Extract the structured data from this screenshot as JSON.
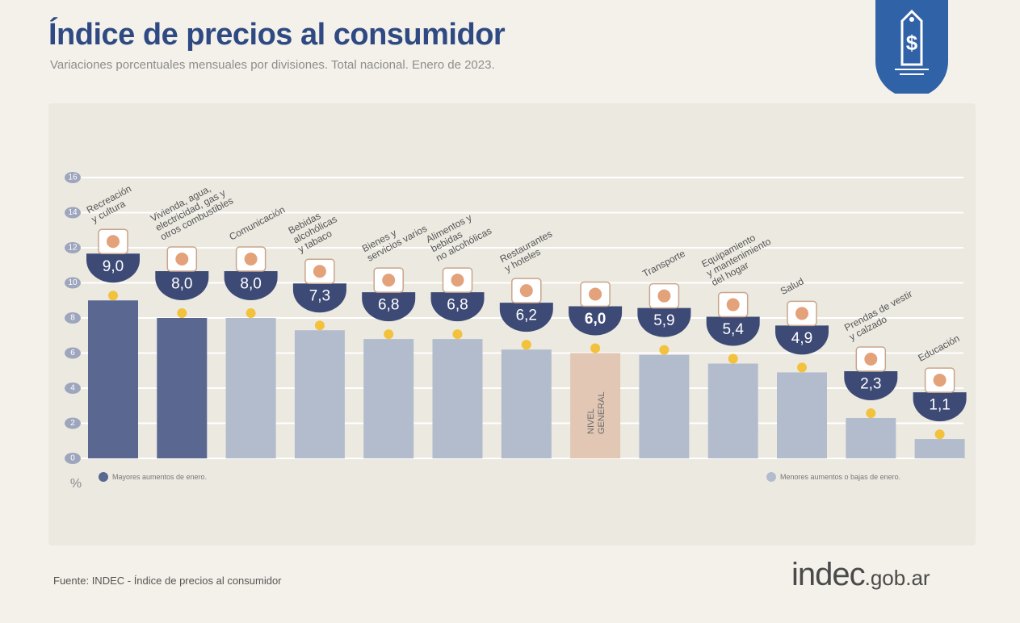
{
  "header": {
    "title": "Índice de precios al consumidor",
    "subtitle": "Variaciones porcentuales mensuales por divisiones. Total nacional. Enero de 2023."
  },
  "footer": {
    "source": "Fuente: INDEC - Índice de precios al consumidor",
    "brand_main": "indec",
    "brand_tld": ".gob.ar"
  },
  "colors": {
    "dark_bar": "#5a6891",
    "light_bar": "#b3bccd",
    "general_bar": "#e3c7b5",
    "badge": "#3d4a76",
    "badge_highlight": "#f2c23c",
    "dot": "#f2c23c",
    "title": "#2f4a82"
  },
  "chart_data": {
    "type": "bar",
    "title": "Índice de precios al consumidor",
    "ylabel": "%",
    "ylim": [
      0,
      16
    ],
    "yticks": [
      "0",
      "2",
      "4",
      "6",
      "8",
      "10",
      "12",
      "14",
      "16"
    ],
    "grid": true,
    "categories": [
      "Recreación y cultura",
      "Vivienda, agua, electricidad, gas y otros combustibles",
      "Comunicación",
      "Bebidas alcohólicas y tabaco",
      "Bienes y servicios varios",
      "Alimentos y bebidas no alcohólicas",
      "Restaurantes y hoteles",
      "NIVEL GENERAL",
      "Transporte",
      "Equipamiento y mantenimiento del hogar",
      "Salud",
      "Prendas de vestir y calzado",
      "Educación"
    ],
    "category_label_lines": [
      [
        "Recreación",
        "y cultura"
      ],
      [
        "Vivienda, agua,",
        "electricidad, gas y",
        "otros combustibles"
      ],
      [
        "Comunicación"
      ],
      [
        "Bebidas",
        "alcohólicas",
        "y tabaco"
      ],
      [
        "Bienes y",
        "servicios varios"
      ],
      [
        "Alimentos y",
        "bebidas",
        "no alcohólicas"
      ],
      [
        "Restaurantes",
        "y hoteles"
      ],
      [
        "NIVEL",
        "GENERAL"
      ],
      [
        "Transporte"
      ],
      [
        "Equipamiento",
        "y mantenimiento",
        "del hogar"
      ],
      [
        "Salud"
      ],
      [
        "Prendas de vestir",
        "y calzado"
      ],
      [
        "Educación"
      ]
    ],
    "values": [
      9.0,
      8.0,
      8.0,
      7.3,
      6.8,
      6.8,
      6.2,
      6.0,
      5.9,
      5.4,
      4.9,
      2.3,
      1.1
    ],
    "value_labels": [
      "9,0",
      "8,0",
      "8,0",
      "7,3",
      "6,8",
      "6,8",
      "6,2",
      "6,0",
      "5,9",
      "5,4",
      "4,9",
      "2,3",
      "1,1"
    ],
    "groups": [
      "high",
      "high",
      "low",
      "low",
      "low",
      "low",
      "low",
      "general",
      "low",
      "low",
      "low",
      "low",
      "low"
    ],
    "legend": [
      {
        "key": "high",
        "label": "Mayores aumentos de enero."
      },
      {
        "key": "low",
        "label": "Menores aumentos o bajas de enero."
      }
    ]
  }
}
